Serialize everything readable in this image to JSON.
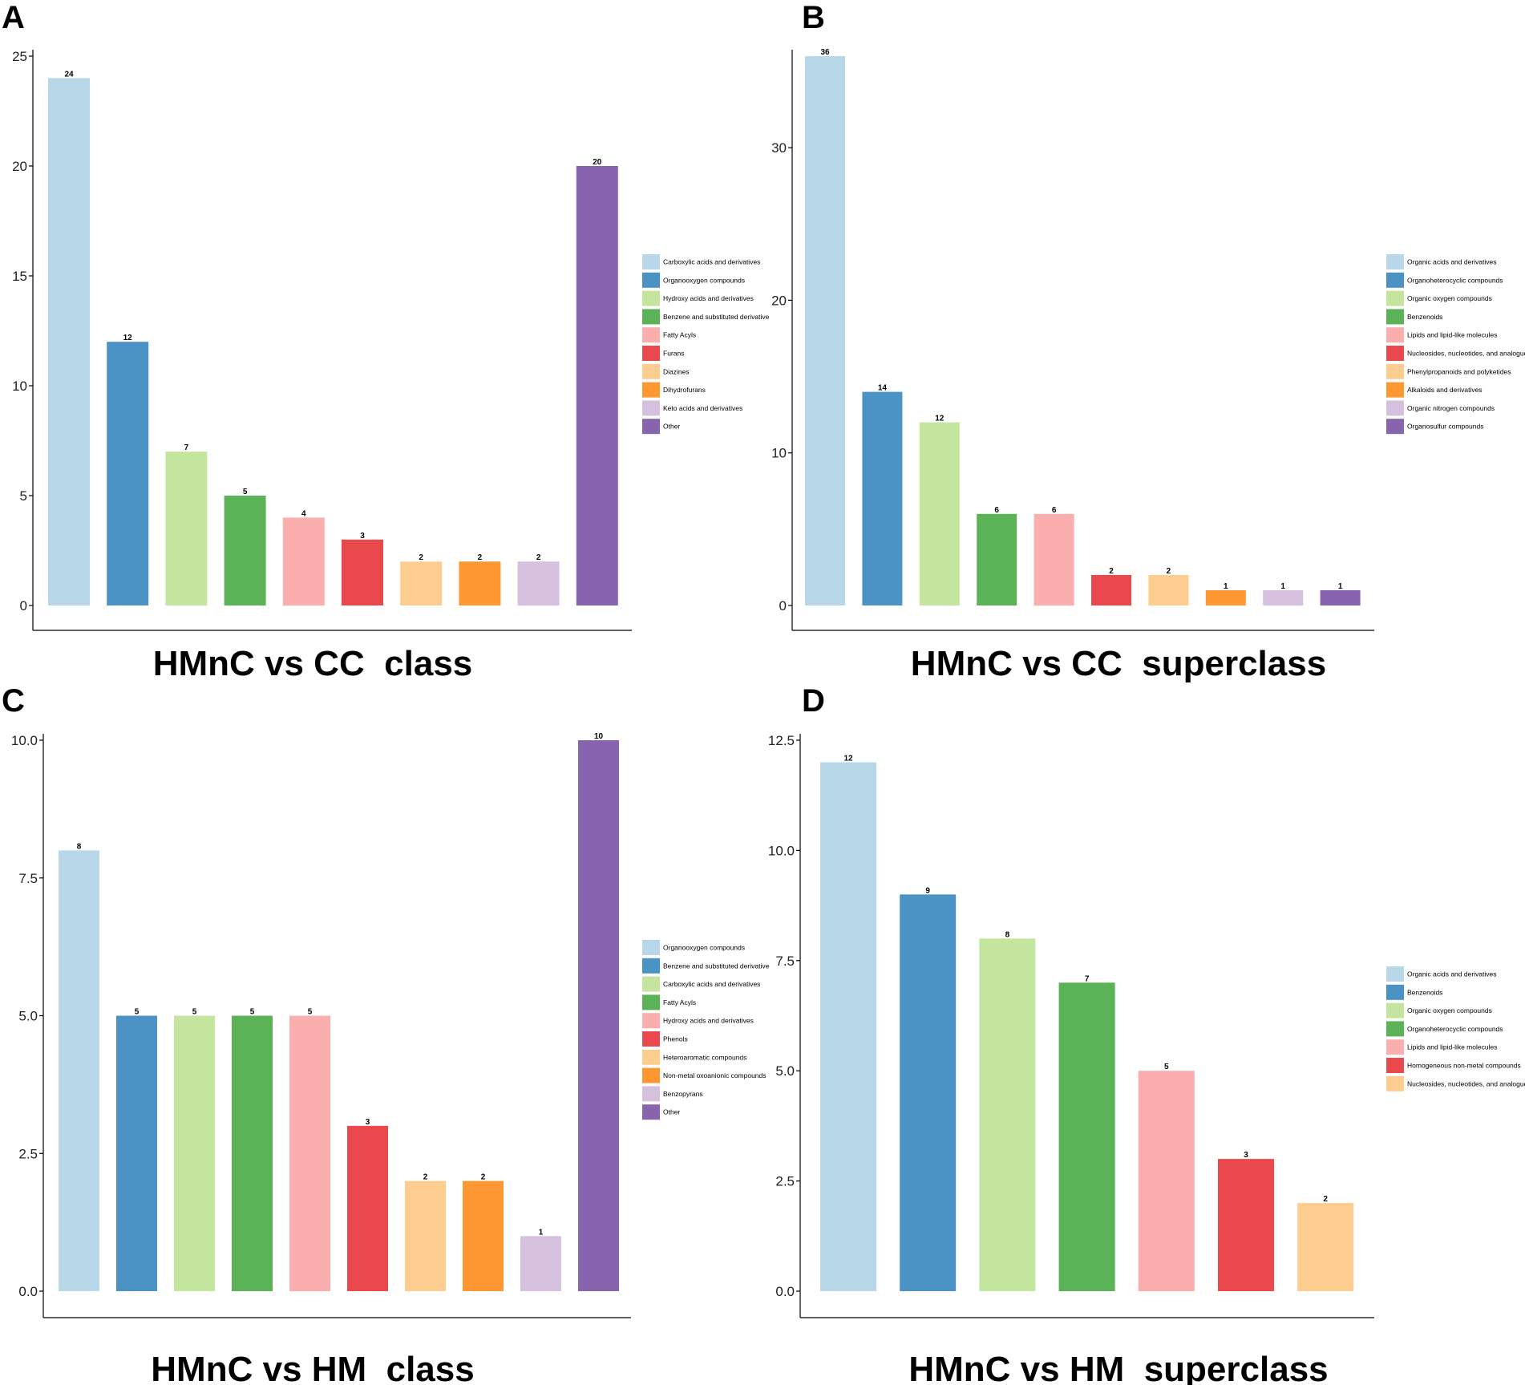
{
  "figure": {
    "panels": [
      "A",
      "B",
      "C",
      "D"
    ]
  },
  "chart_data": [
    {
      "panel": "A",
      "type": "bar",
      "title": "HMnC vs CC  class",
      "ylim": [
        0,
        25
      ],
      "yticks": [
        0,
        5,
        10,
        15,
        20,
        25
      ],
      "tick_labels": [
        "0",
        "5",
        "10",
        "15",
        "20",
        "25"
      ],
      "categories": [
        "Carboxylic acids and derivatives",
        "Organooxygen compounds",
        "Hydroxy acids and derivatives",
        "Benzene and substituted derivative",
        "Fatty Acyls",
        "Furans",
        "Diazines",
        "Dihydrofurans",
        "Keto acids and derivatives",
        "Other"
      ],
      "values": [
        24,
        12,
        7,
        5,
        4,
        3,
        2,
        2,
        2,
        20
      ],
      "colors": [
        "#B8D7E8",
        "#4A93C4",
        "#C3E59E",
        "#5CB257",
        "#FAAFAE",
        "#E9484C",
        "#FCCD8E",
        "#FC9731",
        "#D5C1DE",
        "#8864AF"
      ],
      "legend_position": "right"
    },
    {
      "panel": "B",
      "type": "bar",
      "title": "HMnC vs CC  superclass",
      "ylim": [
        0,
        36
      ],
      "yticks": [
        0,
        10,
        20,
        30
      ],
      "tick_labels": [
        "0",
        "10",
        "20",
        "30"
      ],
      "categories": [
        "Organic acids and derivatives",
        "Organoheterocyclic compounds",
        "Organic oxygen compounds",
        "Benzenoids",
        "Lipids and lipid-like molecules",
        "Nucleosides, nucleotides, and analogues",
        "Phenylpropanoids and polyketides",
        "Alkaloids and derivatives",
        "Organic nitrogen compounds",
        "Organosulfur compounds"
      ],
      "values": [
        36,
        14,
        12,
        6,
        6,
        2,
        2,
        1,
        1,
        1
      ],
      "colors": [
        "#B8D7E8",
        "#4A93C4",
        "#C3E59E",
        "#5CB257",
        "#FAAFAE",
        "#E9484C",
        "#FCCD8E",
        "#FC9731",
        "#D5C1DE",
        "#8864AF"
      ],
      "legend_position": "right"
    },
    {
      "panel": "C",
      "type": "bar",
      "title": "HMnC vs HM  class",
      "ylim": [
        0,
        10
      ],
      "yticks": [
        0,
        2.5,
        5,
        7.5,
        10
      ],
      "tick_labels": [
        "0.0",
        "2.5",
        "5.0",
        "7.5",
        "10.0"
      ],
      "categories": [
        "Organooxygen compounds",
        "Benzene and substituted derivative",
        "Carboxylic acids and derivatives",
        "Fatty Acyls",
        "Hydroxy acids and derivatives",
        "Phenols",
        "Heteroaromatic compounds",
        "Non-metal oxoanionic compounds",
        "Benzopyrans",
        "Other"
      ],
      "values": [
        8,
        5,
        5,
        5,
        5,
        3,
        2,
        2,
        1,
        10
      ],
      "colors": [
        "#B8D7E8",
        "#4A93C4",
        "#C3E59E",
        "#5CB257",
        "#FAAFAE",
        "#E9484C",
        "#FCCD8E",
        "#FC9731",
        "#D5C1DE",
        "#8864AF"
      ],
      "legend_position": "right"
    },
    {
      "panel": "D",
      "type": "bar",
      "title": "HMnC vs HM  superclass",
      "ylim": [
        0,
        12.5
      ],
      "yticks": [
        0,
        2.5,
        5,
        7.5,
        10,
        12.5
      ],
      "tick_labels": [
        "0.0",
        "2.5",
        "5.0",
        "7.5",
        "10.0",
        "12.5"
      ],
      "categories": [
        "Organic acids and derivatives",
        "Benzenoids",
        "Organic oxygen compounds",
        "Organoheterocyclic compounds",
        "Lipids and lipid-like molecules",
        "Homogeneous non-metal compounds",
        "Nucleosides, nucleotides, and analogues"
      ],
      "values": [
        12,
        9,
        8,
        7,
        5,
        3,
        2
      ],
      "colors": [
        "#B8D7E8",
        "#4A93C4",
        "#C3E59E",
        "#5CB257",
        "#FAAFAE",
        "#E9484C",
        "#FCCD8E"
      ],
      "legend_position": "right"
    }
  ]
}
